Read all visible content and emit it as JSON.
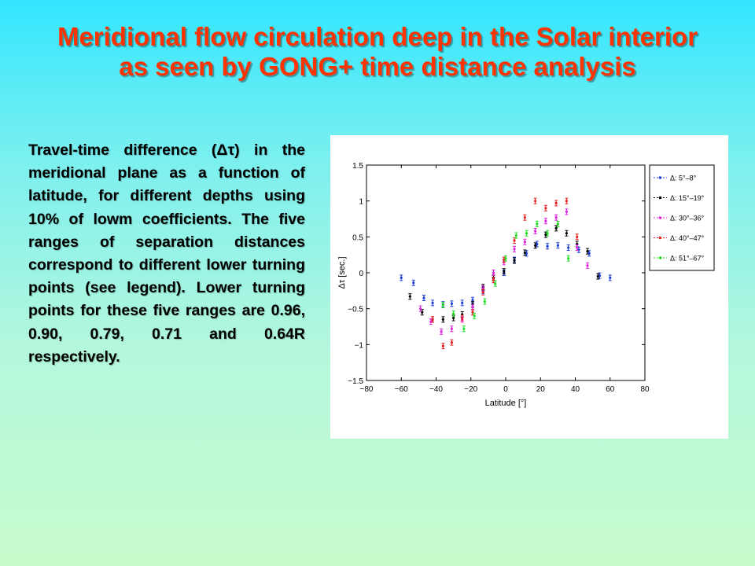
{
  "title": "Meridional flow circulation deep in the Solar interior as seen by GONG+ time distance analysis",
  "description": "Travel-time difference (Δτ) in the meridional plane as a function of latitude, for different depths using 10% of lowm coefficients. The five ranges of separation distances correspond to different lower turning points (see legend). Lower turning points for these five ranges are 0.96, 0.90, 0.79, 0.71 and 0.64R respectively.",
  "chart_data": {
    "type": "scatter",
    "xlabel": "Latitude [°]",
    "ylabel": "Δτ [sec.]",
    "xlim": [
      -80,
      80
    ],
    "ylim": [
      -1.5,
      1.5
    ],
    "xticks": [
      "−80",
      "−60",
      "−40",
      "−20",
      "0",
      "20",
      "40",
      "60",
      "80"
    ],
    "yticks": [
      "1.5",
      "1",
      "0.5",
      "0",
      "−0.5",
      "−1",
      "−1.5"
    ],
    "legend_position": "right",
    "series": [
      {
        "name": "Δ: 5°–8°",
        "color": "#1f3fd6",
        "points": [
          [
            -60,
            -0.07
          ],
          [
            -53,
            -0.14
          ],
          [
            -47,
            -0.35
          ],
          [
            -42,
            -0.42
          ],
          [
            -36,
            -0.44
          ],
          [
            -31,
            -0.43
          ],
          [
            -25,
            -0.42
          ],
          [
            -19,
            -0.38
          ],
          [
            -13,
            -0.25
          ],
          [
            -7,
            -0.1
          ],
          [
            -1,
            0.0
          ],
          [
            5,
            0.18
          ],
          [
            12,
            0.27
          ],
          [
            18,
            0.4
          ],
          [
            24,
            0.37
          ],
          [
            30,
            0.38
          ],
          [
            36,
            0.35
          ],
          [
            42,
            0.32
          ],
          [
            48,
            0.27
          ],
          [
            54,
            -0.04
          ],
          [
            60,
            -0.07
          ]
        ]
      },
      {
        "name": "Δ: 15°–19°",
        "color": "#000000",
        "points": [
          [
            -55,
            -0.33
          ],
          [
            -48,
            -0.55
          ],
          [
            -42,
            -0.65
          ],
          [
            -36,
            -0.65
          ],
          [
            -30,
            -0.63
          ],
          [
            -25,
            -0.58
          ],
          [
            -19,
            -0.44
          ],
          [
            -13,
            -0.2
          ],
          [
            -7,
            -0.07
          ],
          [
            -1,
            0.02
          ],
          [
            5,
            0.17
          ],
          [
            11,
            0.28
          ],
          [
            17,
            0.38
          ],
          [
            23,
            0.53
          ],
          [
            29,
            0.62
          ],
          [
            35,
            0.55
          ],
          [
            41,
            0.4
          ],
          [
            47,
            0.3
          ],
          [
            53,
            -0.05
          ]
        ]
      },
      {
        "name": "Δ: 30°–36°",
        "color": "#e020e0",
        "points": [
          [
            -49,
            -0.5
          ],
          [
            -43,
            -0.68
          ],
          [
            -37,
            -0.82
          ],
          [
            -31,
            -0.78
          ],
          [
            -25,
            -0.65
          ],
          [
            -19,
            -0.48
          ],
          [
            -13,
            -0.22
          ],
          [
            -7,
            0.0
          ],
          [
            -1,
            0.15
          ],
          [
            5,
            0.33
          ],
          [
            11,
            0.43
          ],
          [
            17,
            0.58
          ],
          [
            23,
            0.72
          ],
          [
            29,
            0.77
          ],
          [
            35,
            0.85
          ],
          [
            41,
            0.35
          ],
          [
            47,
            0.1
          ]
        ]
      },
      {
        "name": "Δ: 40°–47°",
        "color": "#e82020",
        "points": [
          [
            -42,
            -0.65
          ],
          [
            -36,
            -1.02
          ],
          [
            -31,
            -0.97
          ],
          [
            -25,
            -0.63
          ],
          [
            -19,
            -0.55
          ],
          [
            -13,
            -0.27
          ],
          [
            -7,
            -0.1
          ],
          [
            -1,
            0.18
          ],
          [
            5,
            0.45
          ],
          [
            11,
            0.77
          ],
          [
            17,
            1.0
          ],
          [
            23,
            0.9
          ],
          [
            29,
            0.97
          ],
          [
            35,
            1.0
          ],
          [
            41,
            0.5
          ]
        ]
      },
      {
        "name": "Δ: 51°–67°",
        "color": "#22dd22",
        "points": [
          [
            -36,
            -0.45
          ],
          [
            -30,
            -0.57
          ],
          [
            -24,
            -0.78
          ],
          [
            -18,
            -0.6
          ],
          [
            -12,
            -0.4
          ],
          [
            -6,
            -0.15
          ],
          [
            0,
            0.2
          ],
          [
            6,
            0.52
          ],
          [
            12,
            0.55
          ],
          [
            18,
            0.68
          ],
          [
            24,
            0.55
          ],
          [
            30,
            0.68
          ],
          [
            36,
            0.2
          ]
        ]
      }
    ]
  }
}
